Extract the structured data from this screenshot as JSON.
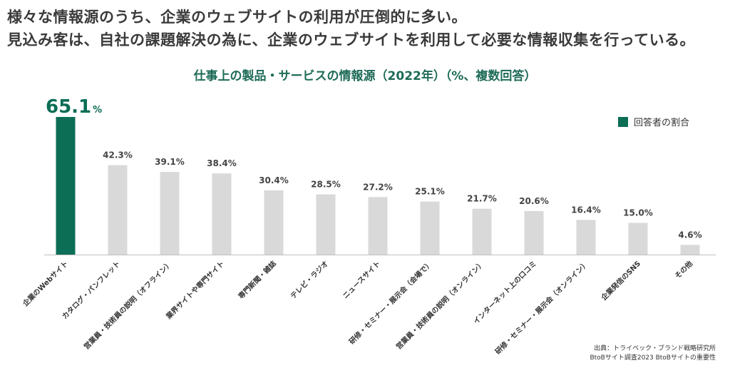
{
  "headline": {
    "line1": "様々な情報源のうち、企業のウェブサイトの利用が圧倒的に多い。",
    "line2": "見込み客は、自社の課題解決の為に、企業のウェブサイトを利用して必要な情報収集を行っている。"
  },
  "legend": {
    "label": "回答者の割合"
  },
  "source": {
    "line1": "出典：トライベック・ブランド戦略研究所",
    "line2": "BtoBサイト調査2023 BtoBサイトの重要性"
  },
  "colors": {
    "highlight": "#0b6e55",
    "bar": "#d9d9d9",
    "title": "#1e6b57"
  },
  "chart_data": {
    "type": "bar",
    "title": "仕事上の製品・サービスの情報源（2022年）（%、複数回答）",
    "unit": "%",
    "categories": [
      "企業のWebサイト",
      "カタログ・パンフレット",
      "営業員・技術員の説明（オフライン）",
      "業界サイトや専門サイト",
      "専門新聞・雑誌",
      "テレビ・ラジオ",
      "ニュースサイト",
      "研修・セミナー・展示会（会場で）",
      "営業員・技術員の説明（オンライン）",
      "インターネット上の口コミ",
      "研修・セミナー・展示会（オンライン）",
      "企業発信のSNS",
      "その他"
    ],
    "series": [
      {
        "name": "回答者の割合",
        "values": [
          65.1,
          42.3,
          39.1,
          38.4,
          30.4,
          28.5,
          27.2,
          25.1,
          21.7,
          20.6,
          16.4,
          15.0,
          4.6
        ],
        "labels": [
          "65.1",
          "42.3%",
          "39.1%",
          "38.4%",
          "30.4%",
          "28.5%",
          "27.2%",
          "25.1%",
          "21.7%",
          "20.6%",
          "16.4%",
          "15.0%",
          "4.6%"
        ]
      }
    ],
    "highlight_index": 0,
    "ylim": [
      0,
      65.1
    ],
    "grid": false,
    "legend_position": "top-right"
  }
}
